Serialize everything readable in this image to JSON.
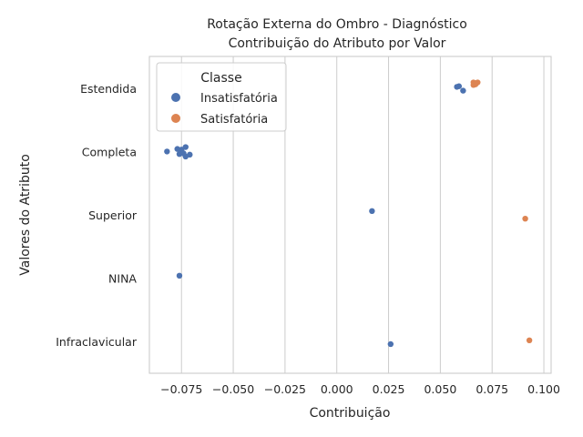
{
  "chart_data": {
    "type": "scatter",
    "title": "Rotação Externa do Ombro - Diagnóstico",
    "subtitle": "Contribuição do Atributo por Valor",
    "xlabel": "Contribuição",
    "ylabel": "Valores do Atributo",
    "xlim": [
      -0.0905,
      0.1035
    ],
    "x_ticks": [
      -0.075,
      -0.05,
      -0.025,
      0.0,
      0.025,
      0.05,
      0.075,
      0.1
    ],
    "x_tick_labels": [
      "−0.075",
      "−0.050",
      "−0.025",
      "0.000",
      "0.025",
      "0.050",
      "0.075",
      "0.100"
    ],
    "categories": [
      "Estendida",
      "Completa",
      "Superior",
      "NINA",
      "Infraclavicular"
    ],
    "grid": true,
    "legend": {
      "title": "Classe",
      "position": "top-left"
    },
    "series": [
      {
        "name": "Insatisfatória",
        "color": "#4c72b0",
        "points": [
          {
            "category": "Estendida",
            "x": 0.058,
            "jitter": -0.02
          },
          {
            "category": "Estendida",
            "x": 0.059,
            "jitter": -0.03
          },
          {
            "category": "Estendida",
            "x": 0.061,
            "jitter": 0.04
          },
          {
            "category": "Completa",
            "x": -0.082,
            "jitter": 0.0
          },
          {
            "category": "Completa",
            "x": -0.077,
            "jitter": -0.04
          },
          {
            "category": "Completa",
            "x": -0.075,
            "jitter": -0.03
          },
          {
            "category": "Completa",
            "x": -0.076,
            "jitter": 0.04
          },
          {
            "category": "Completa",
            "x": -0.074,
            "jitter": 0.03
          },
          {
            "category": "Completa",
            "x": -0.073,
            "jitter": -0.07
          },
          {
            "category": "Completa",
            "x": -0.073,
            "jitter": 0.08
          },
          {
            "category": "Completa",
            "x": -0.071,
            "jitter": 0.05
          },
          {
            "category": "Superior",
            "x": 0.017,
            "jitter": -0.06
          },
          {
            "category": "NINA",
            "x": -0.076,
            "jitter": -0.04
          },
          {
            "category": "Infraclavicular",
            "x": 0.026,
            "jitter": 0.04
          }
        ]
      },
      {
        "name": "Satisfatória",
        "color": "#dd8452",
        "points": [
          {
            "category": "Estendida",
            "x": 0.066,
            "jitter": -0.09
          },
          {
            "category": "Estendida",
            "x": 0.067,
            "jitter": -0.06
          },
          {
            "category": "Estendida",
            "x": 0.068,
            "jitter": -0.09
          },
          {
            "category": "Estendida",
            "x": 0.066,
            "jitter": -0.05
          },
          {
            "category": "Superior",
            "x": 0.091,
            "jitter": 0.06
          },
          {
            "category": "Infraclavicular",
            "x": 0.093,
            "jitter": -0.02
          }
        ]
      }
    ]
  }
}
